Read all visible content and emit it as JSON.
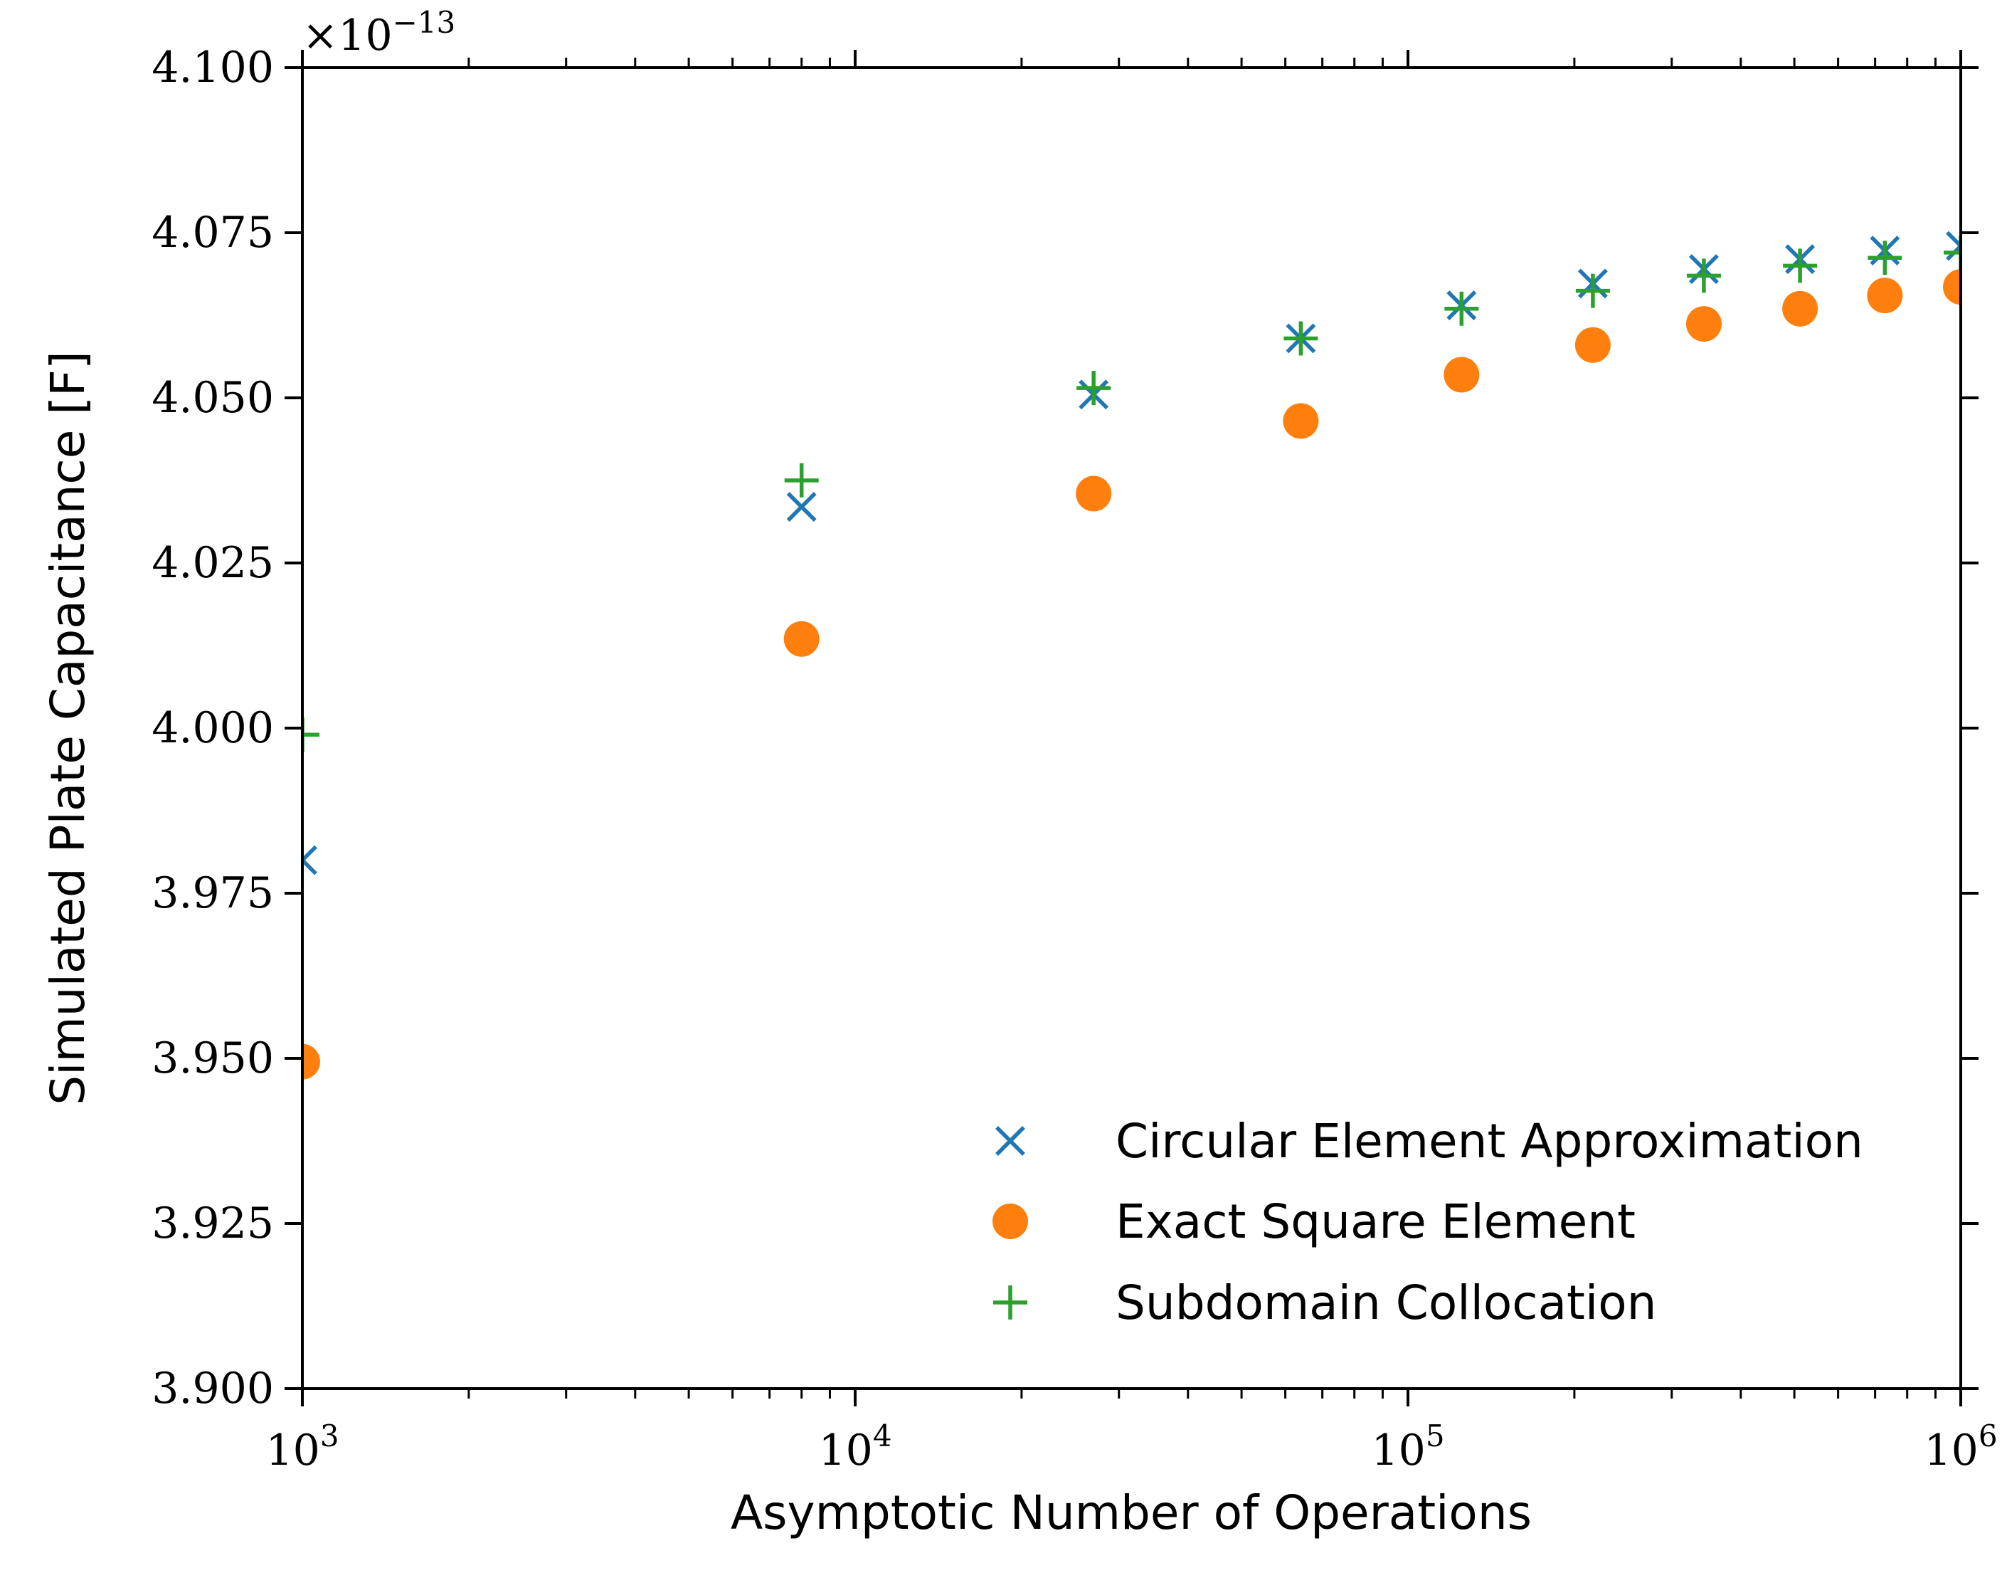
{
  "chart_data": {
    "type": "scatter",
    "xlabel": "Asymptotic Number of Operations",
    "ylabel": "Simulated Plate Capacitance [F]",
    "xscale": "log",
    "xlim": [
      1000,
      1000000
    ],
    "ylim": [
      3.9,
      4.1
    ],
    "y_multiplier": "×10",
    "y_multiplier_exp": "−13",
    "x_ticks": [
      {
        "value": 1000,
        "base": "10",
        "exp": "3"
      },
      {
        "value": 10000,
        "base": "10",
        "exp": "4"
      },
      {
        "value": 100000,
        "base": "10",
        "exp": "5"
      },
      {
        "value": 1000000,
        "base": "10",
        "exp": "6"
      }
    ],
    "y_ticks": [
      {
        "value": 3.9,
        "label": "3.900"
      },
      {
        "value": 3.925,
        "label": "3.925"
      },
      {
        "value": 3.95,
        "label": "3.950"
      },
      {
        "value": 3.975,
        "label": "3.975"
      },
      {
        "value": 4.0,
        "label": "4.000"
      },
      {
        "value": 4.025,
        "label": "4.025"
      },
      {
        "value": 4.05,
        "label": "4.050"
      },
      {
        "value": 4.075,
        "label": "4.075"
      },
      {
        "value": 4.1,
        "label": "4.100"
      }
    ],
    "grid": false,
    "legend_position": "bottom-right",
    "series": [
      {
        "name": "Circular Element Approximation",
        "marker": "x",
        "color": "#1f77b4",
        "x": [
          1000,
          8000,
          27000,
          64000,
          125000,
          216000,
          343000,
          512000,
          729000,
          1000000
        ],
        "y": [
          3.98,
          4.0335,
          4.0505,
          4.059,
          4.064,
          4.0673,
          4.0695,
          4.071,
          4.0723,
          4.073
        ]
      },
      {
        "name": "Exact Square Element",
        "marker": "o",
        "color": "#ff7f0e",
        "x": [
          1000,
          8000,
          27000,
          64000,
          125000,
          216000,
          343000,
          512000,
          729000,
          1000000
        ],
        "y": [
          3.9495,
          4.0135,
          4.0355,
          4.0465,
          4.0535,
          4.058,
          4.0612,
          4.0635,
          4.0655,
          4.0668
        ]
      },
      {
        "name": "Subdomain Collocation",
        "marker": "+",
        "color": "#2ca02c",
        "x": [
          1000,
          8000,
          27000,
          64000,
          125000,
          216000,
          343000,
          512000,
          729000,
          1000000
        ],
        "y": [
          3.999,
          4.0375,
          4.0515,
          4.059,
          4.0635,
          4.0662,
          4.0685,
          4.07,
          4.0712,
          4.072
        ]
      }
    ]
  }
}
